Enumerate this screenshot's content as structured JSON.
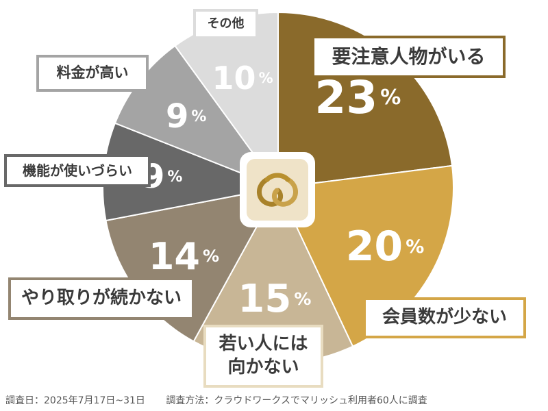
{
  "chart_data": {
    "type": "pie",
    "start_angle_deg": 0,
    "direction": "clockwise",
    "slices": [
      {
        "label": "要注意人物がいる",
        "value": 23,
        "display": "23",
        "color": "#8a6a2b"
      },
      {
        "label": "会員数が少ない",
        "value": 20,
        "display": "20",
        "color": "#d4a647"
      },
      {
        "label": "若い人には向かない",
        "value": 15,
        "display": "15",
        "color": "#c8b696"
      },
      {
        "label": "やり取りが続かない",
        "value": 14,
        "display": "14",
        "color": "#938571"
      },
      {
        "label": "機能が使いづらい",
        "value": 9,
        "display": "9",
        "color": "#686868"
      },
      {
        "label": "料金が高い",
        "value": 9,
        "display": "9",
        "color": "#a4a4a4"
      },
      {
        "label": "その他",
        "value": 10,
        "display": "10",
        "color": "#dcdcdc"
      }
    ],
    "unit": "%"
  },
  "callouts": [
    {
      "lines": [
        "要注意人物がいる"
      ],
      "border_color": "#8a6a2b"
    },
    {
      "lines": [
        "会員数が少ない"
      ],
      "border_color": "#d4a647"
    },
    {
      "lines": [
        "若い人には",
        "向かない"
      ],
      "border_color": "#e8dcc0"
    },
    {
      "lines": [
        "やり取りが続かない"
      ],
      "border_color": "#938571"
    },
    {
      "lines": [
        "機能が使いづらい"
      ],
      "border_color": "#686868"
    },
    {
      "lines": [
        "料金が高い"
      ],
      "border_color": "#a4a4a4"
    },
    {
      "lines": [
        "その他"
      ],
      "border_color": "#dcdcdc"
    }
  ],
  "logo": {
    "icon": "interlocking-rings-icon",
    "color": "#b8902f"
  },
  "footer": {
    "survey_date": "調査日：2025年7月17日~31日",
    "survey_method": "調査方法：クラウドワークスでマリッシュ利用者60人に調査"
  }
}
